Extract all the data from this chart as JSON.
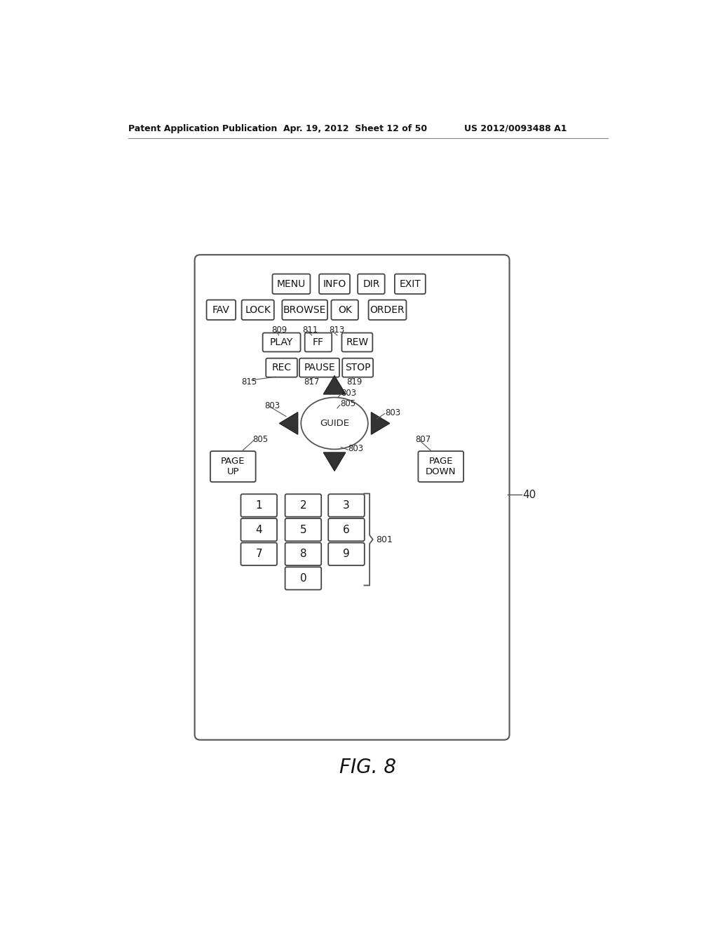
{
  "bg_color": "#ffffff",
  "header_text": "Patent Application Publication",
  "header_date": "Apr. 19, 2012  Sheet 12 of 50",
  "header_patent": "US 2012/0093488 A1",
  "figure_label": "FIG. 8",
  "remote_label": "40",
  "buttons_row1": [
    "MENU",
    "INFO",
    "DIR",
    "EXIT"
  ],
  "buttons_row2": [
    "FAV",
    "LOCK",
    "BROWSE",
    "OK",
    "ORDER"
  ],
  "buttons_row3": [
    "PLAY",
    "FF",
    "REW"
  ],
  "buttons_row4": [
    "REC",
    "PAUSE",
    "STOP"
  ],
  "numpad": [
    "1",
    "2",
    "3",
    "4",
    "5",
    "6",
    "7",
    "8",
    "9",
    "0"
  ]
}
